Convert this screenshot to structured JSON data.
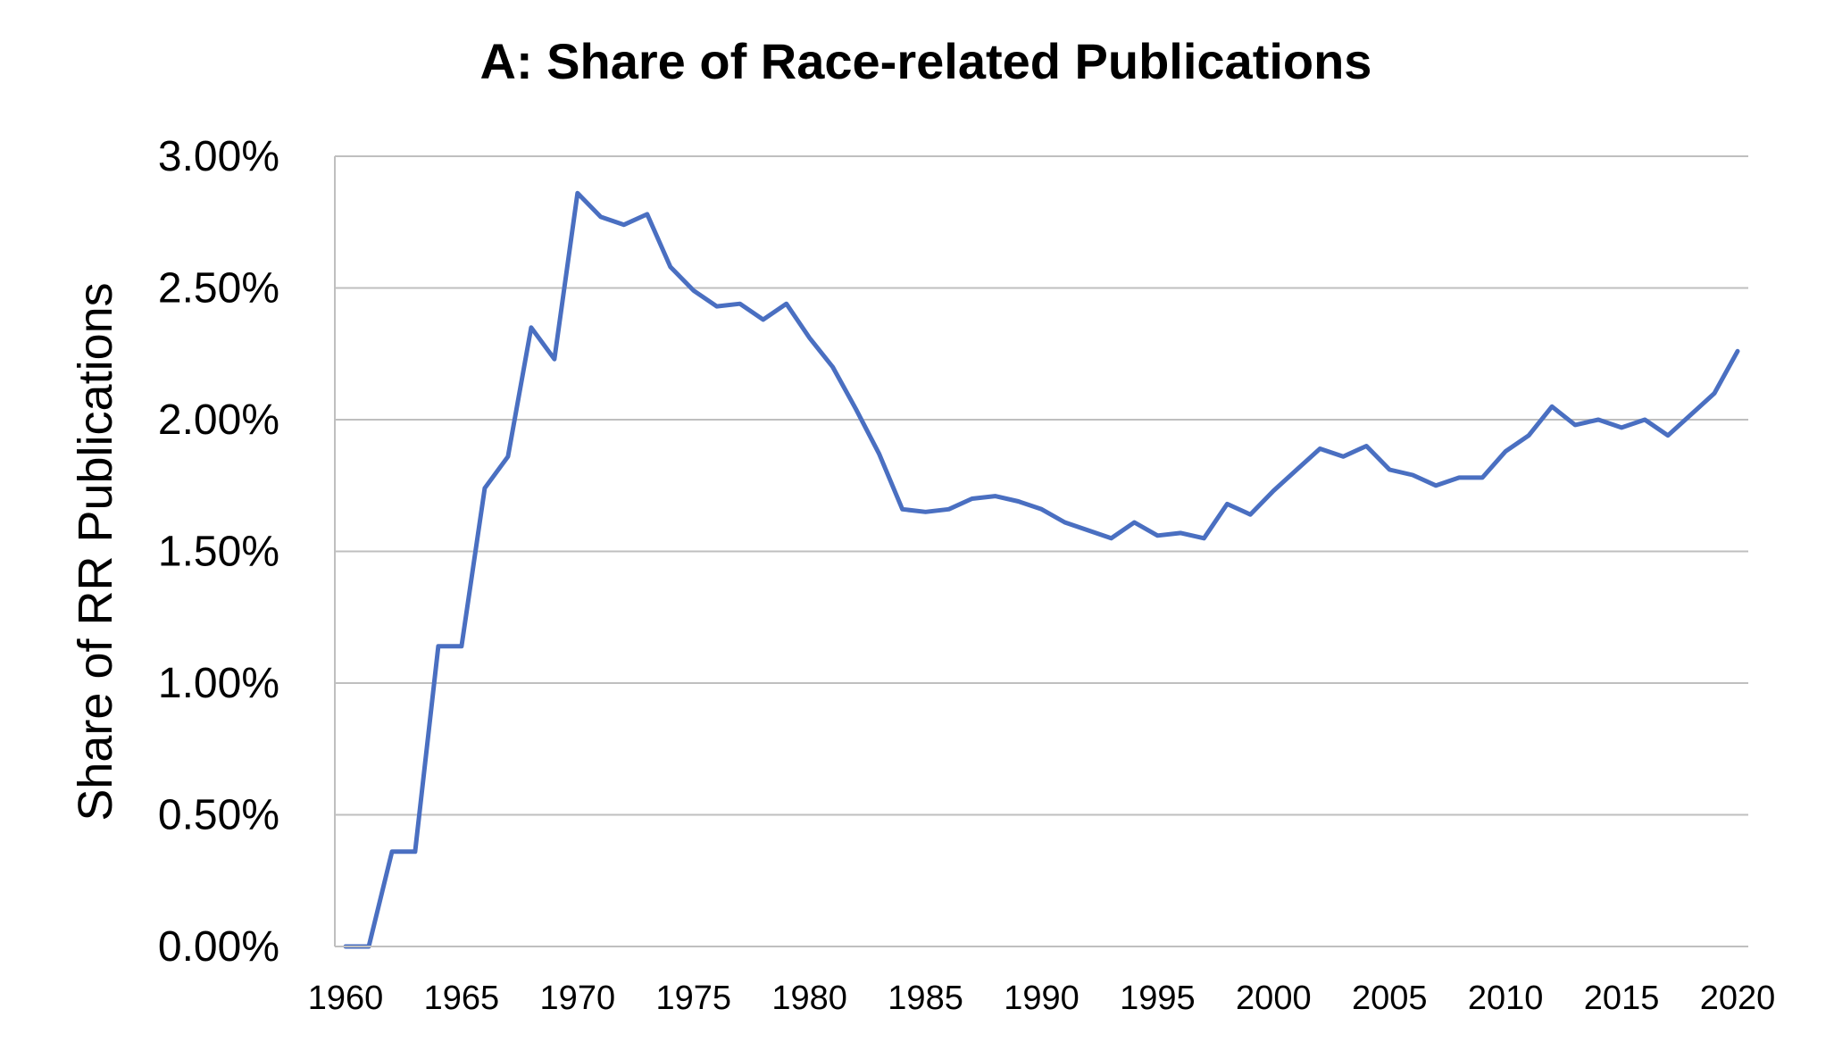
{
  "chart_data": {
    "type": "line",
    "title": "A: Share of Race-related Publications",
    "xlabel": "",
    "ylabel": "Share of RR Publications",
    "xlim": [
      1960,
      2020
    ],
    "ylim": [
      0,
      3.0
    ],
    "y_ticks": [
      "0.00%",
      "0.50%",
      "1.00%",
      "1.50%",
      "2.00%",
      "2.50%",
      "3.00%"
    ],
    "y_tick_values": [
      0,
      0.5,
      1.0,
      1.5,
      2.0,
      2.5,
      3.0
    ],
    "x_ticks": [
      "1960",
      "1965",
      "1970",
      "1975",
      "1980",
      "1985",
      "1990",
      "1995",
      "2000",
      "2005",
      "2010",
      "2015",
      "2020"
    ],
    "x_tick_values": [
      1960,
      1965,
      1970,
      1975,
      1980,
      1985,
      1990,
      1995,
      2000,
      2005,
      2010,
      2015,
      2020
    ],
    "grid": "horizontal",
    "legend": "none",
    "series": [
      {
        "color": "#4a6fc1",
        "x": [
          1960,
          1961,
          1962,
          1963,
          1964,
          1965,
          1966,
          1967,
          1968,
          1969,
          1970,
          1971,
          1972,
          1973,
          1974,
          1975,
          1976,
          1977,
          1978,
          1979,
          1980,
          1981,
          1982,
          1983,
          1984,
          1985,
          1986,
          1987,
          1988,
          1989,
          1990,
          1991,
          1992,
          1993,
          1994,
          1995,
          1996,
          1997,
          1998,
          1999,
          2000,
          2001,
          2002,
          2003,
          2004,
          2005,
          2006,
          2007,
          2008,
          2009,
          2010,
          2011,
          2012,
          2013,
          2014,
          2015,
          2016,
          2017,
          2018,
          2019,
          2020
        ],
        "y": [
          0.0,
          0.0,
          0.36,
          0.36,
          1.14,
          1.14,
          1.74,
          1.86,
          2.35,
          2.23,
          2.86,
          2.77,
          2.74,
          2.78,
          2.58,
          2.49,
          2.43,
          2.44,
          2.38,
          2.44,
          2.31,
          2.2,
          2.04,
          1.87,
          1.66,
          1.65,
          1.66,
          1.7,
          1.71,
          1.69,
          1.66,
          1.61,
          1.58,
          1.55,
          1.61,
          1.56,
          1.57,
          1.55,
          1.68,
          1.64,
          1.73,
          1.81,
          1.89,
          1.86,
          1.9,
          1.81,
          1.79,
          1.75,
          1.78,
          1.78,
          1.88,
          1.94,
          2.05,
          1.98,
          2.0,
          1.97,
          2.0,
          1.94,
          2.02,
          2.1,
          2.26
        ]
      }
    ]
  }
}
